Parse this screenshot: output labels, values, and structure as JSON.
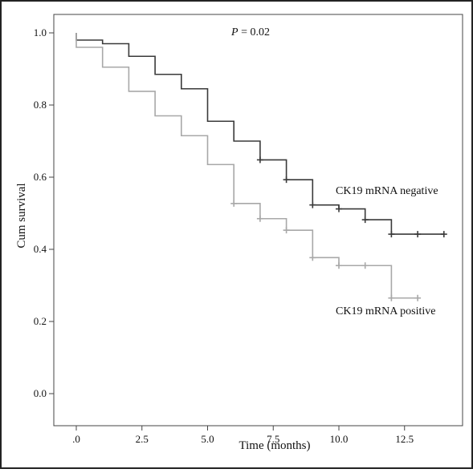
{
  "chart_data": {
    "type": "line",
    "subtype": "kaplan-meier-step",
    "title": "",
    "xlabel": "Time (months)",
    "ylabel": "Cum survival",
    "xlim": [
      0,
      14.5
    ],
    "ylim": [
      0,
      1.0
    ],
    "xticks": [
      0,
      2.5,
      5.0,
      7.5,
      10.0,
      12.5
    ],
    "xtick_labels": [
      ".0",
      "2.5",
      "5.0",
      "7.5",
      "10.0",
      "12.5"
    ],
    "yticks": [
      0,
      0.2,
      0.4,
      0.6,
      0.8,
      1.0
    ],
    "ytick_labels": [
      "0.0",
      "0.2",
      "0.4",
      "0.6",
      "0.8",
      "1.0"
    ],
    "grid": false,
    "legend": "none",
    "annotation": {
      "italic_part": "P",
      "rest": "= 0.02"
    },
    "series": [
      {
        "name": "CK19 mRNA negative",
        "color": "#3a3a3a",
        "steps": [
          [
            0,
            0.98
          ],
          [
            1,
            0.97
          ],
          [
            2,
            0.935
          ],
          [
            3,
            0.885
          ],
          [
            4,
            0.845
          ],
          [
            5,
            0.755
          ],
          [
            6,
            0.7
          ],
          [
            7,
            0.648
          ],
          [
            8,
            0.593
          ],
          [
            9,
            0.523
          ],
          [
            10,
            0.512
          ],
          [
            11,
            0.482
          ],
          [
            12,
            0.442
          ],
          [
            14,
            0.442
          ]
        ],
        "censored": [
          [
            7,
            0.648
          ],
          [
            8,
            0.593
          ],
          [
            9,
            0.523
          ],
          [
            10,
            0.512
          ],
          [
            11,
            0.482
          ],
          [
            12,
            0.442
          ],
          [
            13,
            0.442
          ],
          [
            14,
            0.442
          ]
        ]
      },
      {
        "name": "CK19 mRNA positive",
        "color": "#a8a8a8",
        "steps": [
          [
            0,
            0.96
          ],
          [
            1,
            0.905
          ],
          [
            2,
            0.838
          ],
          [
            3,
            0.77
          ],
          [
            4,
            0.715
          ],
          [
            5,
            0.635
          ],
          [
            6,
            0.527
          ],
          [
            7,
            0.485
          ],
          [
            8,
            0.453
          ],
          [
            9,
            0.377
          ],
          [
            10,
            0.355
          ],
          [
            11,
            0.355
          ],
          [
            12,
            0.265
          ],
          [
            13,
            0.265
          ]
        ],
        "censored": [
          [
            6,
            0.527
          ],
          [
            7,
            0.485
          ],
          [
            8,
            0.453
          ],
          [
            9,
            0.377
          ],
          [
            10,
            0.355
          ],
          [
            11,
            0.355
          ],
          [
            12,
            0.265
          ],
          [
            13,
            0.265
          ]
        ]
      }
    ]
  }
}
